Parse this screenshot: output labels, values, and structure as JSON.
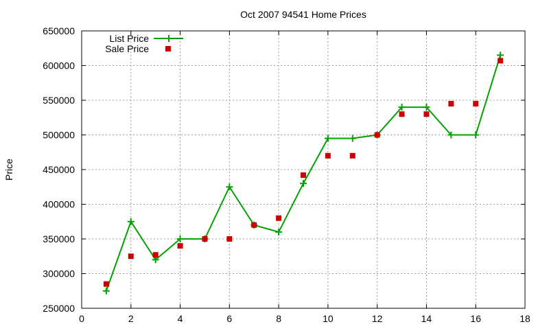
{
  "chart_data": {
    "type": "line",
    "title": "Oct 2007 94541 Home Prices",
    "xlabel": "",
    "ylabel": "Price",
    "xlim": [
      0,
      18
    ],
    "ylim": [
      250000,
      650000
    ],
    "x_ticks": [
      "0",
      "2",
      "4",
      "6",
      "8",
      "10",
      "12",
      "14",
      "16",
      "18"
    ],
    "y_ticks": [
      "250000",
      "300000",
      "350000",
      "400000",
      "450000",
      "500000",
      "550000",
      "600000",
      "650000"
    ],
    "grid": true,
    "legend_position": "top-left",
    "series": [
      {
        "name": "List Price",
        "style": "line with plus markers",
        "color": "#00a000",
        "x": [
          1,
          2,
          3,
          4,
          5,
          6,
          7,
          8,
          9,
          10,
          11,
          12,
          13,
          14,
          15,
          16,
          17
        ],
        "values": [
          275000,
          375000,
          320000,
          350000,
          350000,
          425000,
          370000,
          360000,
          430000,
          495000,
          495000,
          500000,
          540000,
          540000,
          500000,
          500000,
          615000
        ]
      },
      {
        "name": "Sale Price",
        "style": "square markers",
        "color": "#cc0000",
        "x": [
          1,
          2,
          3,
          4,
          5,
          6,
          7,
          8,
          9,
          10,
          11,
          12,
          13,
          14,
          15,
          16,
          17
        ],
        "values": [
          285000,
          325000,
          327000,
          340000,
          350000,
          350000,
          370000,
          380000,
          442000,
          470000,
          470000,
          500000,
          530000,
          530000,
          545000,
          545000,
          607000
        ]
      }
    ]
  }
}
